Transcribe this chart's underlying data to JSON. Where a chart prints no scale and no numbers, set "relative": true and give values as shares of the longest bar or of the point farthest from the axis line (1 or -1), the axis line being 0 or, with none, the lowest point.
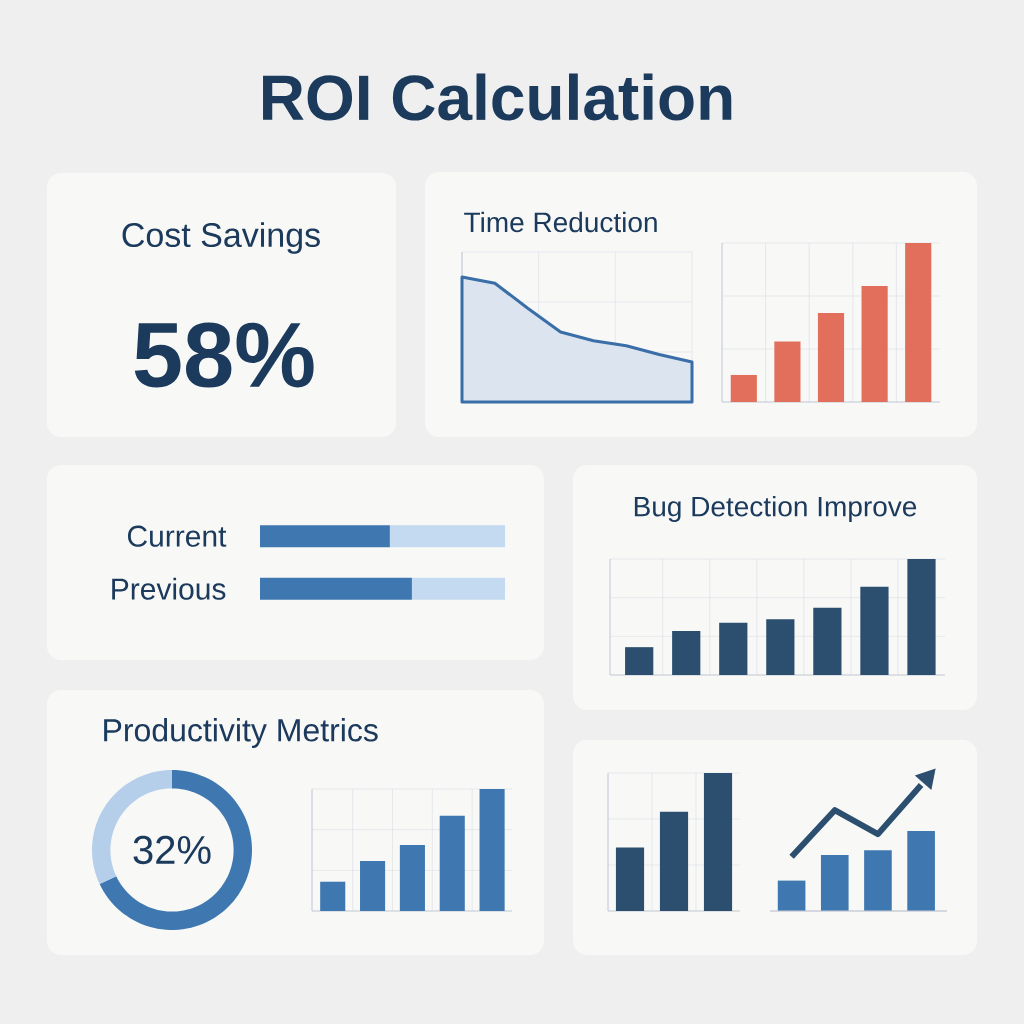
{
  "chart_data": [
    {
      "type": "other",
      "title": "ROI Calculation"
    },
    {
      "type": "other",
      "title": "Cost Savings",
      "annotations": [
        "58%"
      ]
    },
    {
      "type": "area",
      "title": "Time Reduction",
      "relative": true,
      "grid": true,
      "categories": [
        null,
        null,
        null,
        null,
        null,
        null,
        null,
        null
      ],
      "values": [
        1,
        0.95,
        0.75,
        0.56,
        0.49,
        0.45,
        0.38,
        0.32
      ],
      "color": "#3a6ea8"
    },
    {
      "type": "bar",
      "relative": true,
      "grid": true,
      "categories": [
        null,
        null,
        null,
        null,
        null
      ],
      "values": [
        0.17,
        0.38,
        0.56,
        0.73,
        1
      ],
      "color": "#e26f5b"
    },
    {
      "type": "bar",
      "orientation": "horizontal",
      "stacked": true,
      "relative": true,
      "categories": [
        "Current",
        "Previous"
      ],
      "series": [
        {
          "color": "#3f78b0",
          "values": [
            0.53,
            0.62
          ]
        },
        {
          "color": "#c3daf0",
          "values": [
            0.47,
            0.38
          ]
        }
      ]
    },
    {
      "type": "bar",
      "title": "Bug Detection Improve",
      "relative": true,
      "grid": true,
      "categories": [
        null,
        null,
        null,
        null,
        null,
        null,
        null
      ],
      "values": [
        0.24,
        0.38,
        0.45,
        0.48,
        0.58,
        0.76,
        1
      ],
      "color": "#2d4f6f"
    },
    {
      "type": "donut",
      "title": "Productivity Metrics",
      "categories": [
        null,
        null
      ],
      "values": [
        68,
        32
      ],
      "colors": [
        "#3f78b0",
        "#b5cfea"
      ],
      "annotations": [
        "32%"
      ]
    },
    {
      "type": "bar",
      "relative": true,
      "grid": true,
      "categories": [
        null,
        null,
        null,
        null,
        null
      ],
      "values": [
        0.24,
        0.41,
        0.54,
        0.78,
        1
      ],
      "color": "#3f78b0"
    },
    {
      "type": "bar",
      "relative": true,
      "grid": true,
      "categories": [
        null,
        null,
        null
      ],
      "values": [
        0.46,
        0.72,
        1
      ],
      "color": "#2d4f6f"
    },
    {
      "type": "bar",
      "relative": true,
      "categories": [
        null,
        null,
        null,
        null
      ],
      "values": [
        0.38,
        0.7,
        0.76,
        1
      ],
      "color": "#3f78b0"
    },
    {
      "type": "line",
      "relative": true,
      "categories": [
        null,
        null,
        null,
        null
      ],
      "values": [
        0.43,
        0.8,
        0.61,
        1
      ],
      "color": "#2d4f6f"
    }
  ]
}
